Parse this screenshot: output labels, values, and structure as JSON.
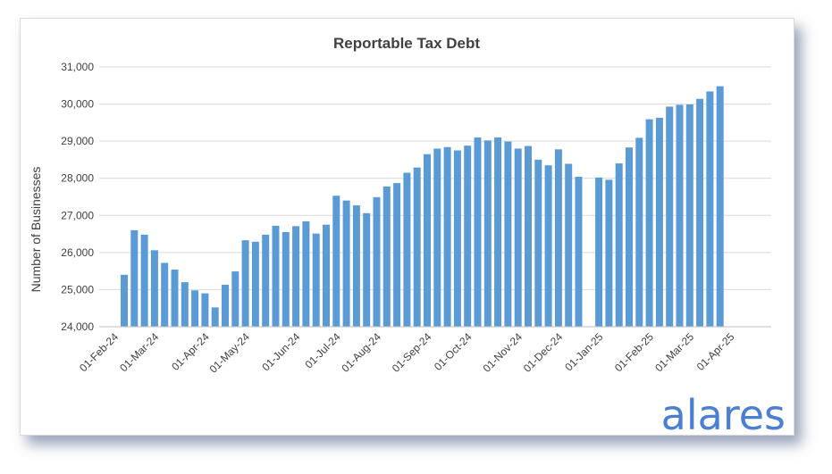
{
  "chart_data": {
    "type": "bar",
    "title": "Reportable Tax Debt",
    "xlabel": "",
    "ylabel": "Number of Businesses",
    "ylim": [
      24000,
      31000
    ],
    "yticks": [
      24000,
      25000,
      26000,
      27000,
      28000,
      29000,
      30000,
      31000
    ],
    "ytick_labels": [
      "24,000",
      "25,000",
      "26,000",
      "27,000",
      "28,000",
      "29,000",
      "30,000",
      "31,000"
    ],
    "grid": true,
    "legend": "none",
    "bar_color": "#5b9bd5",
    "x_tick_labels": [
      "01-Feb-24",
      "01-Mar-24",
      "01-Apr-24",
      "01-May-24",
      "01-Jun-24",
      "01-Jul-24",
      "01-Aug-24",
      "01-Sep-24",
      "01-Oct-24",
      "01-Nov-24",
      "01-Dec-24",
      "01-Jan-25",
      "01-Feb-25",
      "01-Mar-25",
      "01-Apr-25"
    ],
    "values": [
      25400,
      26600,
      26480,
      26060,
      25720,
      25540,
      25200,
      24980,
      24900,
      24520,
      25130,
      25490,
      26330,
      26290,
      26480,
      26720,
      26550,
      26710,
      26840,
      26510,
      26750,
      27530,
      27400,
      27270,
      27060,
      27490,
      27780,
      27870,
      28150,
      28290,
      28650,
      28800,
      28840,
      28750,
      28880,
      29100,
      29020,
      29100,
      28990,
      28800,
      28870,
      28500,
      28350,
      28780,
      28390,
      28040,
      null,
      28020,
      27960,
      28400,
      28830,
      29090,
      29590,
      29630,
      29930,
      29980,
      29990,
      30140,
      30340,
      30480
    ]
  },
  "branding": {
    "logo_text": "alares"
  }
}
